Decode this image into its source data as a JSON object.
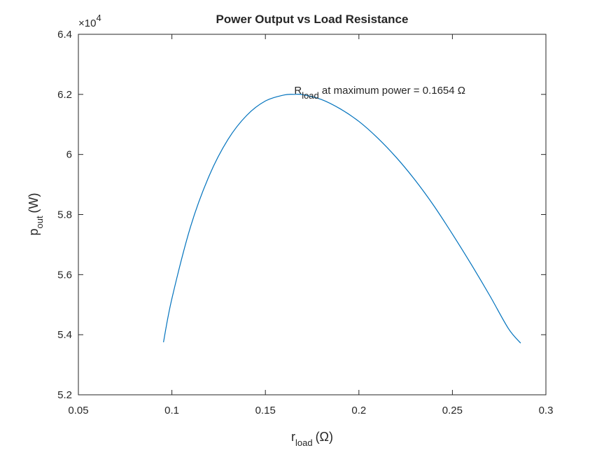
{
  "chart_data": {
    "type": "line",
    "title": "Power Output vs Load Resistance",
    "xlabel": {
      "main": "r",
      "sub": "load",
      "unit": "(Ω)"
    },
    "ylabel": {
      "main": "p",
      "sub": "out",
      "unit": "(W)"
    },
    "y_exponent_label": {
      "base": "×10",
      "power": "4"
    },
    "xlim": [
      0.05,
      0.3
    ],
    "ylim": [
      5.2,
      6.4
    ],
    "y_scale_factor": 10000,
    "xticks": [
      0.05,
      0.1,
      0.15,
      0.2,
      0.25,
      0.3
    ],
    "xtick_labels": [
      "0.05",
      "0.1",
      "0.15",
      "0.2",
      "0.25",
      "0.3"
    ],
    "yticks": [
      5.2,
      5.4,
      5.6,
      5.8,
      6.0,
      6.2,
      6.4
    ],
    "ytick_labels": [
      "5.2",
      "5.4",
      "5.6",
      "5.8",
      "6",
      "6.2",
      "6.4"
    ],
    "grid": false,
    "series": [
      {
        "color": "#0072BD",
        "x": [
          0.0955,
          0.1,
          0.11,
          0.12,
          0.13,
          0.14,
          0.15,
          0.16,
          0.1654,
          0.17,
          0.18,
          0.19,
          0.2,
          0.21,
          0.22,
          0.23,
          0.24,
          0.25,
          0.26,
          0.27,
          0.28,
          0.2865
        ],
        "y": [
          5.375,
          5.52,
          5.76,
          5.93,
          6.05,
          6.13,
          6.178,
          6.198,
          6.2,
          6.199,
          6.183,
          6.152,
          6.11,
          6.055,
          5.99,
          5.915,
          5.83,
          5.735,
          5.635,
          5.53,
          5.42,
          5.372
        ]
      }
    ],
    "annotation": {
      "main": "R",
      "sub": "load",
      "rest": " at maximum power = 0.1654 Ω",
      "x": 0.1654,
      "y": 6.2
    }
  }
}
